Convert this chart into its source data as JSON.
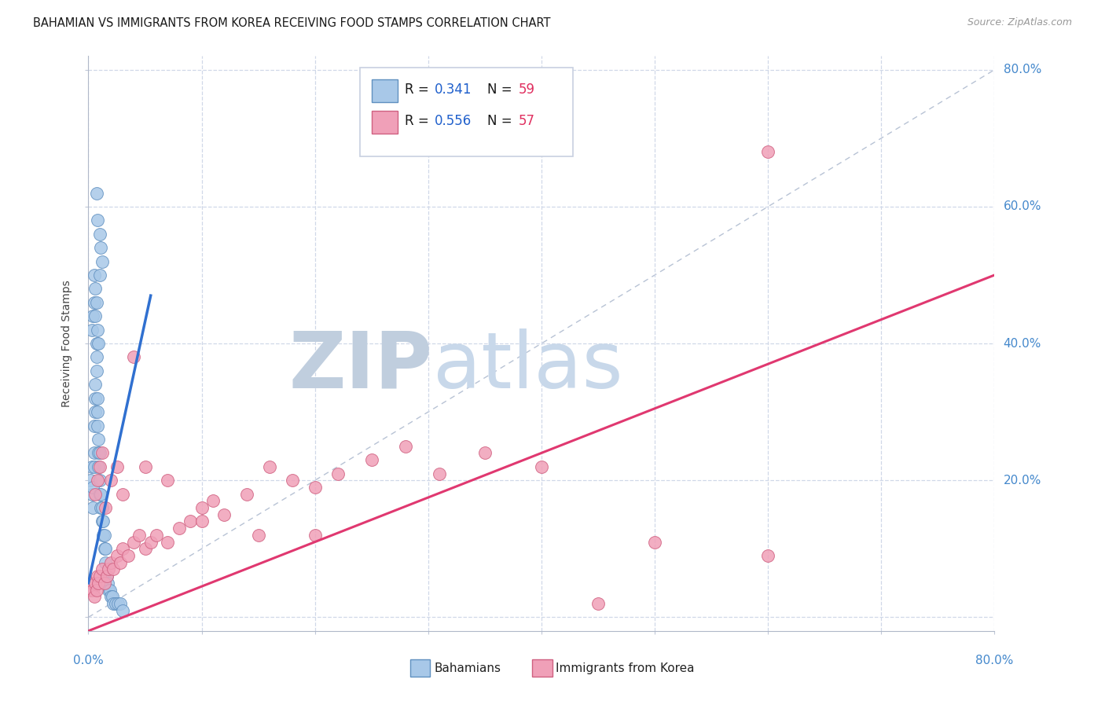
{
  "title": "BAHAMIAN VS IMMIGRANTS FROM KOREA RECEIVING FOOD STAMPS CORRELATION CHART",
  "source": "Source: ZipAtlas.com",
  "ylabel": "Receiving Food Stamps",
  "bahamian_color": "#a8c8e8",
  "korea_color": "#f0a0b8",
  "bahamian_edge_color": "#6090c0",
  "korea_edge_color": "#d06080",
  "bahamian_line_color": "#3070d0",
  "korea_line_color": "#e03870",
  "diagonal_color": "#b0bcd0",
  "watermark_zip_color": "#c0d0e4",
  "watermark_atlas_color": "#b8cce0",
  "background_color": "#ffffff",
  "grid_color": "#d0d8e8",
  "axis_label_color": "#4488cc",
  "title_color": "#1a1a1a",
  "r_color": "#2060cc",
  "n_color": "#e03060",
  "legend_text_color": "#1a1a1a",
  "bahamian_x": [
    0.002,
    0.003,
    0.003,
    0.004,
    0.004,
    0.005,
    0.005,
    0.005,
    0.006,
    0.006,
    0.006,
    0.007,
    0.007,
    0.007,
    0.008,
    0.008,
    0.008,
    0.009,
    0.009,
    0.009,
    0.01,
    0.01,
    0.01,
    0.011,
    0.011,
    0.012,
    0.012,
    0.013,
    0.013,
    0.014,
    0.014,
    0.015,
    0.015,
    0.016,
    0.017,
    0.018,
    0.019,
    0.02,
    0.021,
    0.022,
    0.024,
    0.026,
    0.028,
    0.03,
    0.003,
    0.004,
    0.005,
    0.006,
    0.005,
    0.006,
    0.007,
    0.008,
    0.009,
    0.007,
    0.008,
    0.01,
    0.011,
    0.012,
    0.01
  ],
  "bahamian_y": [
    0.2,
    0.18,
    0.22,
    0.16,
    0.19,
    0.22,
    0.24,
    0.28,
    0.3,
    0.32,
    0.34,
    0.36,
    0.38,
    0.4,
    0.28,
    0.3,
    0.32,
    0.24,
    0.26,
    0.22,
    0.18,
    0.2,
    0.24,
    0.16,
    0.18,
    0.14,
    0.16,
    0.12,
    0.14,
    0.1,
    0.12,
    0.08,
    0.1,
    0.06,
    0.05,
    0.04,
    0.04,
    0.03,
    0.03,
    0.02,
    0.02,
    0.02,
    0.02,
    0.01,
    0.42,
    0.44,
    0.46,
    0.44,
    0.5,
    0.48,
    0.46,
    0.42,
    0.4,
    0.62,
    0.58,
    0.56,
    0.54,
    0.52,
    0.5
  ],
  "korea_x": [
    0.002,
    0.003,
    0.004,
    0.005,
    0.006,
    0.007,
    0.008,
    0.009,
    0.01,
    0.012,
    0.014,
    0.016,
    0.018,
    0.02,
    0.022,
    0.025,
    0.028,
    0.03,
    0.035,
    0.04,
    0.045,
    0.05,
    0.055,
    0.06,
    0.07,
    0.08,
    0.09,
    0.1,
    0.11,
    0.12,
    0.14,
    0.16,
    0.18,
    0.2,
    0.22,
    0.25,
    0.28,
    0.31,
    0.35,
    0.4,
    0.45,
    0.5,
    0.6,
    0.006,
    0.008,
    0.01,
    0.012,
    0.015,
    0.02,
    0.025,
    0.03,
    0.04,
    0.05,
    0.07,
    0.1,
    0.15,
    0.2
  ],
  "korea_y": [
    0.04,
    0.05,
    0.04,
    0.03,
    0.05,
    0.04,
    0.06,
    0.05,
    0.06,
    0.07,
    0.05,
    0.06,
    0.07,
    0.08,
    0.07,
    0.09,
    0.08,
    0.1,
    0.09,
    0.11,
    0.12,
    0.1,
    0.11,
    0.12,
    0.11,
    0.13,
    0.14,
    0.16,
    0.17,
    0.15,
    0.18,
    0.22,
    0.2,
    0.19,
    0.21,
    0.23,
    0.25,
    0.21,
    0.24,
    0.22,
    0.02,
    0.11,
    0.09,
    0.18,
    0.2,
    0.22,
    0.24,
    0.16,
    0.2,
    0.22,
    0.18,
    0.38,
    0.22,
    0.2,
    0.14,
    0.12,
    0.12
  ],
  "korea_outlier_x": [
    0.6
  ],
  "korea_outlier_y": [
    0.68
  ],
  "xlim": [
    0.0,
    0.8
  ],
  "ylim": [
    -0.02,
    0.82
  ],
  "xtick_positions": [
    0.0,
    0.1,
    0.2,
    0.3,
    0.4,
    0.5,
    0.6,
    0.7,
    0.8
  ],
  "ytick_positions": [
    0.0,
    0.2,
    0.4,
    0.6,
    0.8
  ],
  "figsize": [
    14.06,
    8.92
  ],
  "dpi": 100,
  "bah_line_x0": 0.0,
  "bah_line_x1": 0.055,
  "bah_line_y0": 0.05,
  "bah_line_y1": 0.47,
  "kor_line_x0": 0.0,
  "kor_line_x1": 0.8,
  "kor_line_y0": -0.02,
  "kor_line_y1": 0.5
}
